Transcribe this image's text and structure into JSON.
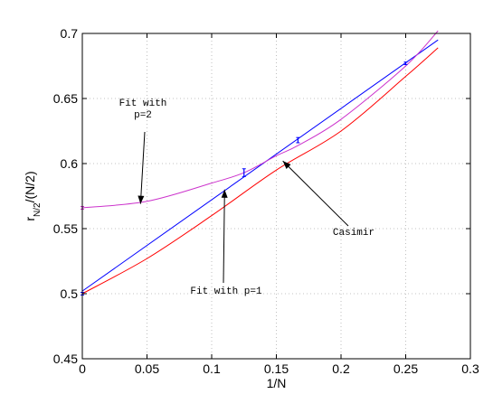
{
  "chart_data": {
    "type": "line",
    "xlabel": "1/N",
    "ylabel_main": "r",
    "ylabel_sub": "N/2",
    "ylabel_tail": "/(N/2)",
    "xlim": [
      0,
      0.3
    ],
    "ylim": [
      0.45,
      0.7
    ],
    "xticks": [
      0,
      0.05,
      0.1,
      0.15,
      0.2,
      0.25,
      0.3
    ],
    "yticks": [
      0.45,
      0.5,
      0.55,
      0.6,
      0.65,
      0.7
    ],
    "xtick_labels": [
      "0",
      "0.05",
      "0.1",
      "0.15",
      "0.2",
      "0.25",
      "0.3"
    ],
    "ytick_labels": [
      "0.45",
      "0.5",
      "0.55",
      "0.6",
      "0.65",
      "0.7"
    ],
    "grid": true,
    "curves": [
      {
        "id": "p1",
        "color": "#0000ff",
        "x": [
          0,
          0.275
        ],
        "y": [
          0.502,
          0.695
        ]
      },
      {
        "id": "p2",
        "color": "#cc33cc",
        "x": [
          0,
          0.05,
          0.1,
          0.125,
          0.15,
          0.167,
          0.2,
          0.25,
          0.275
        ],
        "y": [
          0.566,
          0.571,
          0.585,
          0.593,
          0.606,
          0.614,
          0.634,
          0.675,
          0.702
        ]
      },
      {
        "id": "casimir",
        "color": "#ff0000",
        "x": [
          0,
          0.05,
          0.1,
          0.15,
          0.2,
          0.25,
          0.275
        ],
        "y": [
          0.5,
          0.527,
          0.56,
          0.595,
          0.625,
          0.667,
          0.689
        ]
      }
    ],
    "data_points": {
      "color": "#0000ff",
      "x": [
        0,
        0.125,
        0.1667,
        0.25
      ],
      "y": [
        0.5,
        0.593,
        0.618,
        0.677
      ],
      "err": [
        0.001,
        0.003,
        0.002,
        0.001
      ]
    },
    "extra_point": {
      "x": 0,
      "y": 0.566,
      "err": 0.001,
      "color": "#cc33cc"
    },
    "annotations": [
      {
        "id": "fit-p2",
        "lines": [
          "Fit with",
          "p=2"
        ],
        "arrow_to": [
          0.045,
          0.569
        ]
      },
      {
        "id": "fit-p1",
        "lines": [
          "Fit with p=1"
        ],
        "arrow_to": [
          0.11,
          0.58
        ]
      },
      {
        "id": "casimir",
        "lines": [
          "Casimir"
        ],
        "arrow_to": [
          0.155,
          0.602
        ]
      }
    ]
  }
}
